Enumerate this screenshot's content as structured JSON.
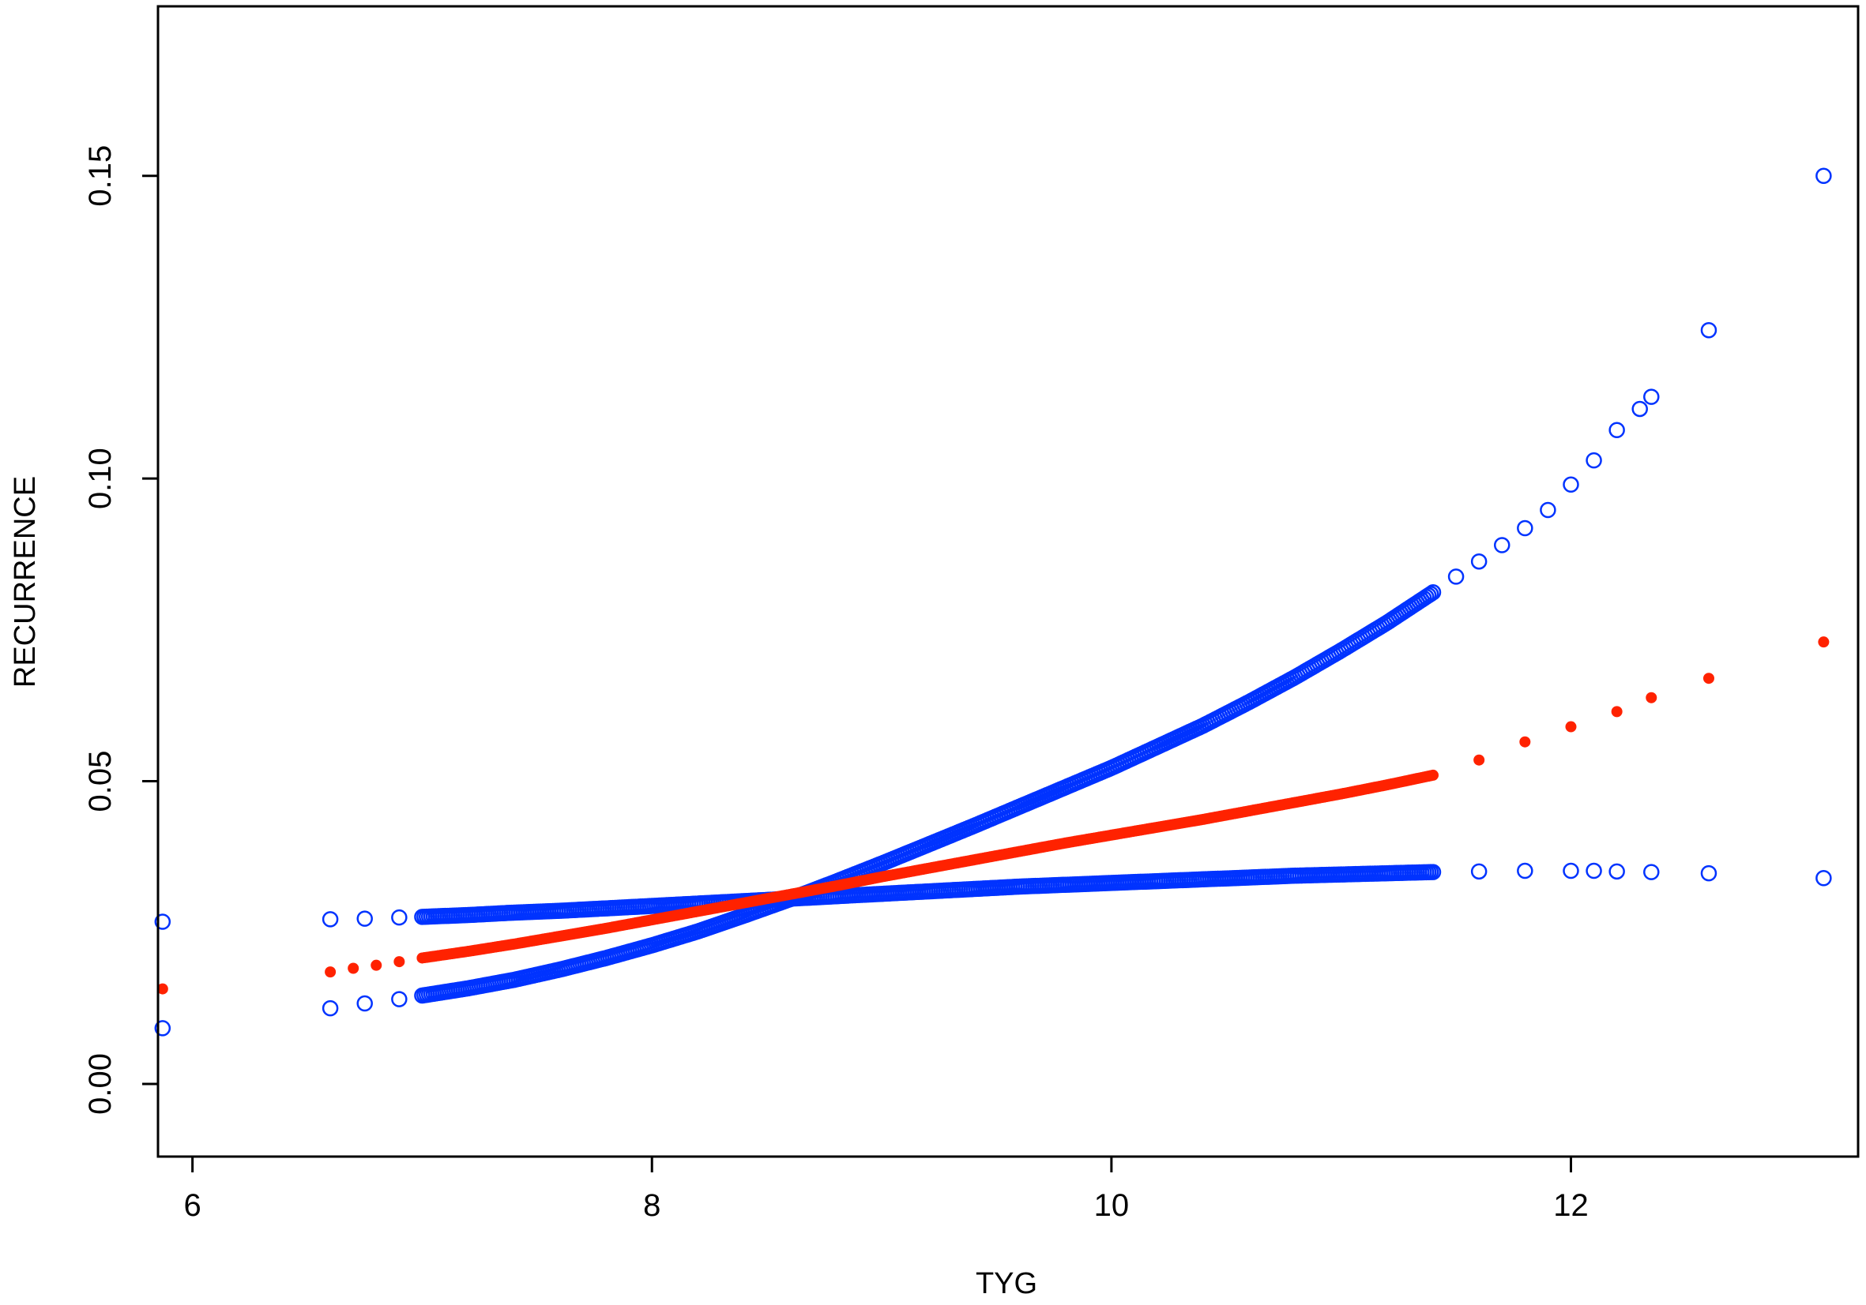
{
  "chart_data": {
    "type": "scatter",
    "title": "",
    "xlabel": "TYG",
    "ylabel": "RECURRENCE",
    "xlim": [
      5.85,
      13.25
    ],
    "ylim": [
      -0.012,
      0.178
    ],
    "xticks": [
      6,
      8,
      10,
      12
    ],
    "xtick_labels": [
      "6",
      "8",
      "10",
      "12"
    ],
    "yticks": [
      0.0,
      0.05,
      0.1,
      0.15
    ],
    "ytick_labels": [
      "0.00",
      "0.05",
      "0.10",
      "0.15"
    ],
    "grid": false,
    "legend": "none",
    "series": [
      {
        "role": "estimate",
        "color": "#ff2200",
        "marker": "filled-circle",
        "x": [
          5.87,
          6.6,
          6.7,
          6.8,
          6.9,
          7.0,
          7.2,
          7.4,
          7.6,
          7.8,
          8.0,
          8.2,
          8.4,
          8.6,
          8.8,
          9.0,
          9.2,
          9.4,
          9.6,
          9.8,
          10.0,
          10.2,
          10.4,
          10.6,
          10.8,
          11.0,
          11.2,
          11.4,
          11.6,
          11.8,
          12.0,
          12.2,
          12.35,
          12.6,
          13.1
        ],
        "y": [
          0.0157,
          0.0185,
          0.0191,
          0.0196,
          0.0202,
          0.0208,
          0.0219,
          0.0231,
          0.0244,
          0.0257,
          0.0271,
          0.0285,
          0.0299,
          0.0313,
          0.0327,
          0.0342,
          0.0356,
          0.037,
          0.0384,
          0.0398,
          0.0411,
          0.0424,
          0.0437,
          0.0451,
          0.0465,
          0.0479,
          0.0494,
          0.051,
          0.0535,
          0.0565,
          0.059,
          0.0615,
          0.0638,
          0.067,
          0.073
        ]
      },
      {
        "role": "upper-bound",
        "color": "#0033ff",
        "marker": "open-circle",
        "x": [
          5.87,
          6.6,
          6.75,
          6.9,
          7.0,
          7.2,
          7.4,
          7.6,
          7.8,
          8.0,
          8.2,
          8.4,
          8.6,
          8.8,
          9.0,
          9.2,
          9.4,
          9.6,
          9.8,
          10.0,
          10.2,
          10.4,
          10.6,
          10.8,
          11.0,
          11.2,
          11.4,
          11.5,
          11.6,
          11.7,
          11.8,
          11.9,
          12.0,
          12.1,
          12.2,
          12.3,
          12.35,
          12.6,
          13.1
        ],
        "y": [
          0.0092,
          0.0125,
          0.0133,
          0.014,
          0.0146,
          0.0158,
          0.0172,
          0.0189,
          0.0208,
          0.0229,
          0.0252,
          0.0278,
          0.0305,
          0.0334,
          0.0364,
          0.0395,
          0.0426,
          0.0458,
          0.049,
          0.0522,
          0.0557,
          0.0592,
          0.0631,
          0.0672,
          0.0716,
          0.0762,
          0.0812,
          0.0838,
          0.0863,
          0.089,
          0.0918,
          0.0948,
          0.099,
          0.103,
          0.108,
          0.1115,
          0.1135,
          0.1245,
          0.15
        ]
      },
      {
        "role": "lower-bound",
        "color": "#0033ff",
        "marker": "open-circle",
        "x": [
          5.87,
          6.6,
          6.75,
          6.9,
          7.0,
          7.2,
          7.4,
          7.6,
          7.8,
          8.0,
          8.2,
          8.4,
          8.6,
          8.8,
          9.0,
          9.2,
          9.4,
          9.6,
          9.8,
          10.0,
          10.2,
          10.4,
          10.6,
          10.8,
          11.0,
          11.2,
          11.4,
          11.6,
          11.8,
          12.0,
          12.1,
          12.2,
          12.35,
          12.6,
          13.1
        ],
        "y": [
          0.0268,
          0.0272,
          0.0273,
          0.0275,
          0.0276,
          0.0279,
          0.0283,
          0.0286,
          0.029,
          0.0294,
          0.0298,
          0.0302,
          0.0306,
          0.031,
          0.0314,
          0.0318,
          0.0322,
          0.0326,
          0.0329,
          0.0332,
          0.0335,
          0.0338,
          0.0341,
          0.0344,
          0.0346,
          0.0348,
          0.035,
          0.0351,
          0.0352,
          0.0352,
          0.0352,
          0.0351,
          0.035,
          0.0348,
          0.034
        ]
      }
    ]
  }
}
